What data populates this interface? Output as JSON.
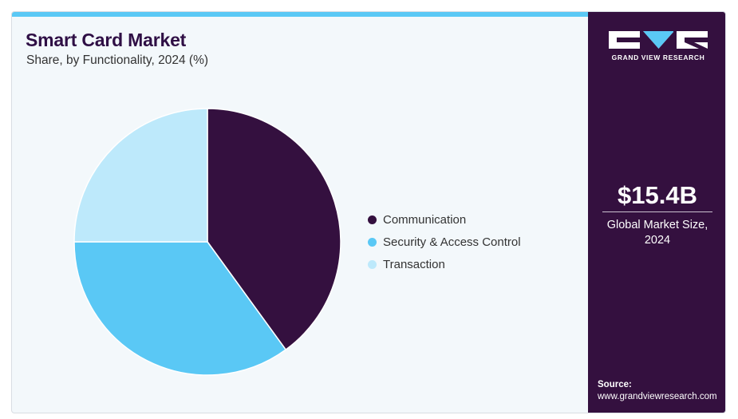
{
  "header": {
    "title": "Smart Card Market",
    "subtitle": "Share, by Functionality, 2024 (%)"
  },
  "chart_data": {
    "type": "pie",
    "categories": [
      "Communication",
      "Security & Access Control",
      "Transaction"
    ],
    "values": [
      40,
      35,
      25
    ],
    "unit": "%",
    "legend_position": "right",
    "colors": [
      "#34103f",
      "#5ac8f5",
      "#bde9fb"
    ]
  },
  "sidebar": {
    "logo_text": "GRAND VIEW RESEARCH",
    "market_size": "$15.4B",
    "market_size_label": "Global Market Size, 2024",
    "source_label": "Source:",
    "source_url": "www.grandviewresearch.com"
  },
  "colors": {
    "sidebar_bg": "#34103f",
    "accent": "#5ac8f5",
    "title": "#2f0f45",
    "background": "#f3f8fb"
  }
}
